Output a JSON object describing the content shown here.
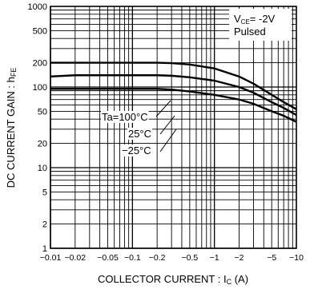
{
  "chart_data": {
    "type": "line",
    "xscale": "log",
    "yscale": "log",
    "xlabel": "COLLECTOR CURRENT : I",
    "xlabel_sub": "C",
    "xlabel_unit": " (A)",
    "ylabel": "DC CURRENT GAIN : h",
    "ylabel_sub": "FE",
    "xlim": [
      -0.01,
      -10
    ],
    "ylim": [
      1,
      1000
    ],
    "x_ticks": [
      "-0.01",
      "-0.02",
      "-0.05",
      "-0.1",
      "-0.2",
      "-0.5",
      "-1",
      "-2",
      "-5",
      "-10"
    ],
    "y_ticks": [
      "1",
      "2",
      "5",
      "10",
      "20",
      "50",
      "100",
      "200",
      "500",
      "1000"
    ],
    "grid": true,
    "conditions": {
      "line1_main": "V",
      "line1_sub": "CE",
      "line1_val": "= -2V",
      "line2": "Pulsed"
    },
    "series": [
      {
        "name": "Ta=100°C",
        "x": [
          -0.01,
          -0.02,
          -0.05,
          -0.1,
          -0.2,
          -0.3,
          -0.5,
          -1,
          -2,
          -3,
          -5,
          -7,
          -10
        ],
        "y": [
          200,
          200,
          200,
          200,
          200,
          198,
          190,
          170,
          135,
          110,
          80,
          65,
          53
        ]
      },
      {
        "name": "25°C",
        "x": [
          -0.01,
          -0.02,
          -0.05,
          -0.1,
          -0.2,
          -0.3,
          -0.5,
          -1,
          -2,
          -3,
          -5,
          -7,
          -10
        ],
        "y": [
          135,
          140,
          140,
          140,
          140,
          138,
          132,
          120,
          100,
          85,
          65,
          55,
          45
        ]
      },
      {
        "name": "-25°C",
        "x": [
          -0.01,
          -0.02,
          -0.05,
          -0.1,
          -0.2,
          -0.3,
          -0.5,
          -1,
          -2,
          -3,
          -5,
          -7,
          -10
        ],
        "y": [
          95,
          95,
          95,
          95,
          95,
          93,
          88,
          80,
          70,
          62,
          50,
          44,
          37
        ]
      }
    ],
    "annotations": [
      "Ta=100°C",
      "25°C",
      "-25°C"
    ]
  }
}
